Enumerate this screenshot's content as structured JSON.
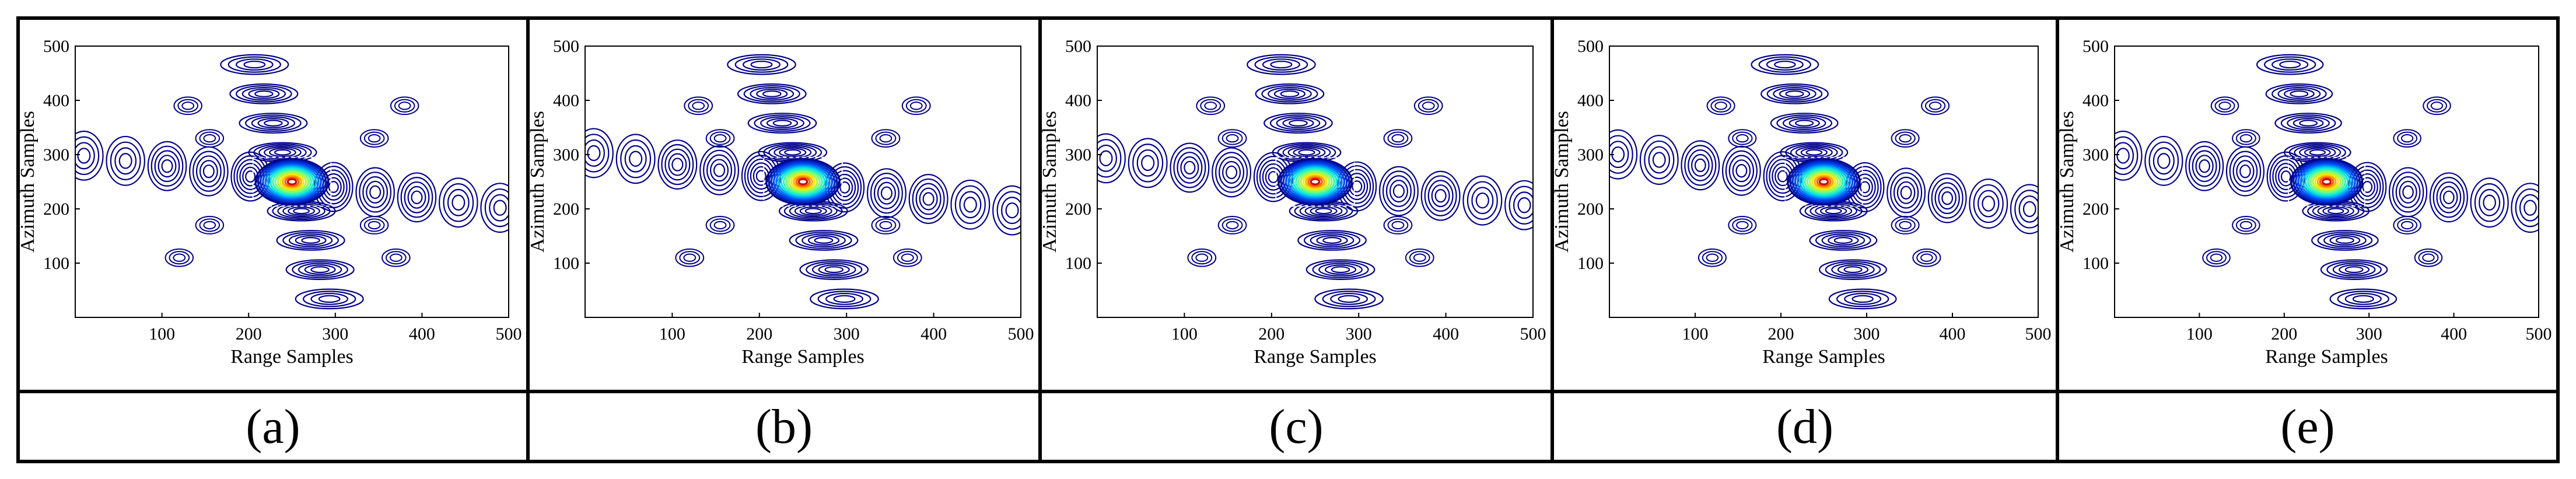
{
  "chart_data": [
    {
      "type": "contour",
      "panel": "a",
      "xlabel": "Range Samples",
      "ylabel": "Azimuth Samples",
      "xlim": [
        0,
        500
      ],
      "ylim": [
        0,
        500
      ],
      "xticks": [
        100,
        200,
        300,
        400,
        500
      ],
      "yticks": [
        100,
        200,
        300,
        400,
        500
      ],
      "peak": [
        250,
        250
      ],
      "caption": "(a)"
    },
    {
      "type": "contour",
      "panel": "b",
      "xlabel": "Range Samples",
      "ylabel": "Azimuth Samples",
      "xlim": [
        0,
        500
      ],
      "ylim": [
        0,
        500
      ],
      "xticks": [
        100,
        200,
        300,
        400,
        500
      ],
      "yticks": [
        100,
        200,
        300,
        400,
        500
      ],
      "peak": [
        250,
        250
      ],
      "caption": "(b)"
    },
    {
      "type": "contour",
      "panel": "c",
      "xlabel": "Range Samples",
      "ylabel": "Azimuth Samples",
      "xlim": [
        0,
        500
      ],
      "ylim": [
        0,
        500
      ],
      "xticks": [
        100,
        200,
        300,
        400,
        500
      ],
      "yticks": [
        100,
        200,
        300,
        400,
        500
      ],
      "peak": [
        250,
        250
      ],
      "caption": "(c)"
    },
    {
      "type": "contour",
      "panel": "d",
      "xlabel": "Range Samples",
      "ylabel": "Azimuth Samples",
      "xlim": [
        0,
        500
      ],
      "ylim": [
        0,
        500
      ],
      "xticks": [
        100,
        200,
        300,
        400,
        500
      ],
      "yticks": [
        100,
        200,
        300,
        400,
        500
      ],
      "peak": [
        250,
        250
      ],
      "caption": "(d)"
    },
    {
      "type": "contour",
      "panel": "e",
      "xlabel": "Range Samples",
      "ylabel": "Azimuth Samples",
      "xlim": [
        0,
        500
      ],
      "ylim": [
        0,
        500
      ],
      "xticks": [
        100,
        200,
        300,
        400,
        500
      ],
      "yticks": [
        100,
        200,
        300,
        400,
        500
      ],
      "peak": [
        250,
        250
      ],
      "caption": "(e)"
    }
  ],
  "colors": {
    "outer_contour": "#00008b",
    "border": "#000000"
  }
}
